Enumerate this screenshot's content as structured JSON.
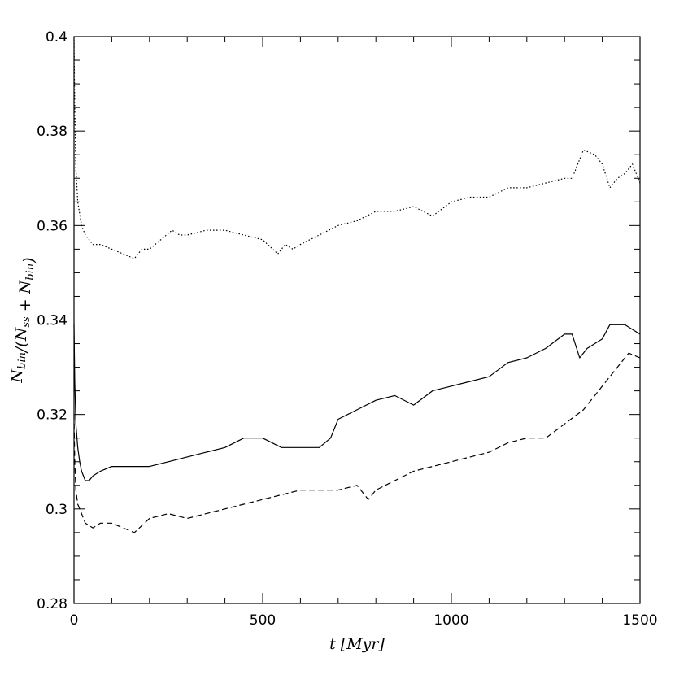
{
  "chart_data": {
    "type": "line",
    "title": "",
    "xlabel": "t [Myr]",
    "ylabel": {
      "parts": [
        {
          "text": "N",
          "sub": "bin"
        },
        {
          "text": "/(N",
          "sub": "ss"
        },
        {
          "text": " + N",
          "sub": "bin"
        },
        {
          "text": ")",
          "sub": ""
        }
      ]
    },
    "xlim": [
      0,
      1500
    ],
    "ylim": [
      0.28,
      0.4
    ],
    "x_major_ticks": [
      0,
      500,
      1000,
      1500
    ],
    "x_tick_labels": [
      "0",
      "500",
      "1000",
      "1500"
    ],
    "x_minor_step": 100,
    "y_major_ticks": [
      0.28,
      0.3,
      0.32,
      0.34,
      0.36,
      0.38,
      0.4
    ],
    "y_tick_labels": [
      "0.28",
      "0.3",
      "0.32",
      "0.34",
      "0.36",
      "0.38",
      "0.4"
    ],
    "y_minor_step": 0.005,
    "grid": false,
    "legend": "none",
    "series": [
      {
        "style": "dotted",
        "x": [
          0,
          2,
          5,
          10,
          20,
          30,
          40,
          50,
          70,
          100,
          130,
          160,
          180,
          200,
          230,
          260,
          280,
          300,
          350,
          400,
          450,
          500,
          540,
          560,
          580,
          600,
          650,
          700,
          750,
          800,
          850,
          900,
          950,
          1000,
          1050,
          1100,
          1150,
          1200,
          1250,
          1300,
          1320,
          1350,
          1380,
          1400,
          1420,
          1440,
          1460,
          1480,
          1500
        ],
        "y": [
          0.4,
          0.385,
          0.372,
          0.365,
          0.36,
          0.358,
          0.357,
          0.356,
          0.356,
          0.355,
          0.354,
          0.353,
          0.355,
          0.355,
          0.357,
          0.359,
          0.358,
          0.358,
          0.359,
          0.359,
          0.358,
          0.357,
          0.354,
          0.356,
          0.355,
          0.356,
          0.358,
          0.36,
          0.361,
          0.363,
          0.363,
          0.364,
          0.362,
          0.365,
          0.366,
          0.366,
          0.368,
          0.368,
          0.369,
          0.37,
          0.37,
          0.376,
          0.375,
          0.373,
          0.368,
          0.37,
          0.371,
          0.373,
          0.369
        ]
      },
      {
        "style": "solid",
        "x": [
          0,
          2,
          5,
          10,
          15,
          20,
          30,
          40,
          50,
          70,
          100,
          150,
          200,
          250,
          300,
          350,
          400,
          450,
          500,
          550,
          600,
          650,
          680,
          700,
          750,
          800,
          850,
          900,
          950,
          1000,
          1050,
          1100,
          1150,
          1200,
          1250,
          1300,
          1320,
          1340,
          1360,
          1400,
          1420,
          1440,
          1460,
          1480,
          1500
        ],
        "y": [
          0.339,
          0.327,
          0.318,
          0.313,
          0.31,
          0.308,
          0.306,
          0.306,
          0.307,
          0.308,
          0.309,
          0.309,
          0.309,
          0.31,
          0.311,
          0.312,
          0.313,
          0.315,
          0.315,
          0.313,
          0.313,
          0.313,
          0.315,
          0.319,
          0.321,
          0.323,
          0.324,
          0.322,
          0.325,
          0.326,
          0.327,
          0.328,
          0.331,
          0.332,
          0.334,
          0.337,
          0.337,
          0.332,
          0.334,
          0.336,
          0.339,
          0.339,
          0.339,
          0.338,
          0.337
        ]
      },
      {
        "style": "dashed",
        "x": [
          0,
          2,
          5,
          10,
          20,
          30,
          50,
          70,
          100,
          130,
          160,
          200,
          250,
          300,
          350,
          400,
          450,
          500,
          550,
          600,
          650,
          700,
          750,
          780,
          800,
          850,
          900,
          950,
          1000,
          1050,
          1100,
          1150,
          1200,
          1250,
          1300,
          1350,
          1400,
          1430,
          1450,
          1470,
          1500
        ],
        "y": [
          0.32,
          0.31,
          0.304,
          0.301,
          0.299,
          0.297,
          0.296,
          0.297,
          0.297,
          0.296,
          0.295,
          0.298,
          0.299,
          0.298,
          0.299,
          0.3,
          0.301,
          0.302,
          0.303,
          0.304,
          0.304,
          0.304,
          0.305,
          0.302,
          0.304,
          0.306,
          0.308,
          0.309,
          0.31,
          0.311,
          0.312,
          0.314,
          0.315,
          0.315,
          0.318,
          0.321,
          0.326,
          0.329,
          0.331,
          0.333,
          0.332
        ]
      }
    ]
  }
}
